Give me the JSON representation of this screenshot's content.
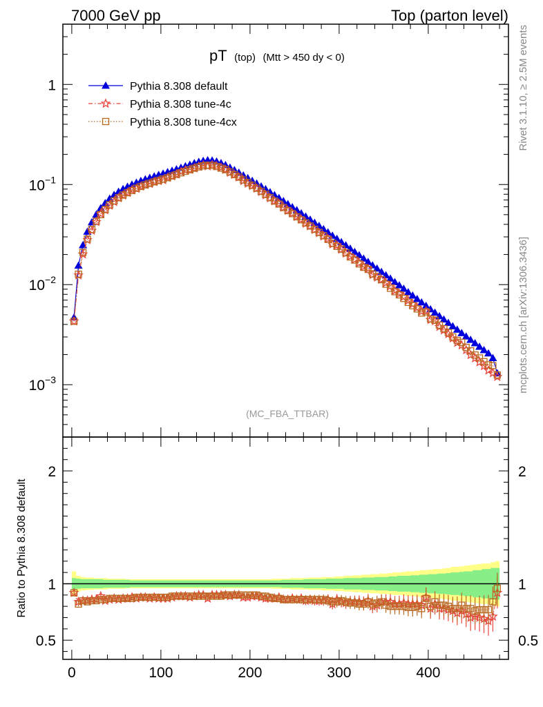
{
  "header": {
    "left": "7000 GeV pp",
    "right": "Top (parton level)"
  },
  "plot_title": {
    "main": "pT",
    "sub1": "(top)",
    "sub2": "(Mtt > 450 dy < 0)"
  },
  "watermark": "(MC_FBA_TTBAR)",
  "side_labels": {
    "rivet": "Rivet 3.1.10, ≥ 2.5M events",
    "mcplots": "mcplots.cern.ch [arXiv:1306.3436]"
  },
  "colors": {
    "default": "#0000dd",
    "tune4c": "#e8453c",
    "tune4cx": "#b8691f",
    "band_yellow": "#ffff88",
    "band_green": "#88ee88"
  },
  "chart_data": [
    {
      "type": "line",
      "panel": "main",
      "yscale": "log",
      "xlim": [
        -10,
        490
      ],
      "ylim": [
        0.0003,
        4
      ],
      "y_ticks": [
        {
          "value": 1,
          "base": "1",
          "exp": ""
        },
        {
          "value": 0.1,
          "base": "10",
          "exp": "−1"
        },
        {
          "value": 0.01,
          "base": "10",
          "exp": "−2"
        },
        {
          "value": 0.001,
          "base": "10",
          "exp": "−3"
        }
      ],
      "legend_position": "top-left",
      "x": [
        2.5,
        7.5,
        12.5,
        17.5,
        22.5,
        27.5,
        32.5,
        37.5,
        42.5,
        47.5,
        52.5,
        57.5,
        62.5,
        67.5,
        72.5,
        77.5,
        82.5,
        87.5,
        92.5,
        97.5,
        102.5,
        107.5,
        112.5,
        117.5,
        122.5,
        127.5,
        132.5,
        137.5,
        142.5,
        147.5,
        152.5,
        157.5,
        162.5,
        167.5,
        172.5,
        177.5,
        182.5,
        187.5,
        192.5,
        197.5,
        202.5,
        207.5,
        212.5,
        217.5,
        222.5,
        227.5,
        232.5,
        237.5,
        242.5,
        247.5,
        252.5,
        257.5,
        262.5,
        267.5,
        272.5,
        277.5,
        282.5,
        287.5,
        292.5,
        297.5,
        302.5,
        307.5,
        312.5,
        317.5,
        322.5,
        327.5,
        332.5,
        337.5,
        342.5,
        347.5,
        352.5,
        357.5,
        362.5,
        367.5,
        372.5,
        377.5,
        382.5,
        387.5,
        392.5,
        397.5,
        402.5,
        407.5,
        412.5,
        417.5,
        422.5,
        427.5,
        432.5,
        437.5,
        442.5,
        447.5,
        452.5,
        457.5,
        462.5,
        467.5,
        472.5,
        477.5
      ],
      "series": [
        {
          "name": "Pythia 8.308 default",
          "style": "line-triangle",
          "values": [
            0.0047,
            0.0155,
            0.0248,
            0.0338,
            0.042,
            0.0502,
            0.0582,
            0.0653,
            0.0723,
            0.0788,
            0.0848,
            0.0902,
            0.0952,
            0.1,
            0.1045,
            0.1088,
            0.1128,
            0.1168,
            0.1208,
            0.1248,
            0.1288,
            0.133,
            0.1375,
            0.1422,
            0.1472,
            0.1525,
            0.158,
            0.1635,
            0.1685,
            0.1725,
            0.175,
            0.174,
            0.17,
            0.164,
            0.1565,
            0.148,
            0.1395,
            0.1315,
            0.1235,
            0.116,
            0.109,
            0.1025,
            0.096,
            0.09,
            0.084,
            0.0785,
            0.0733,
            0.0685,
            0.0638,
            0.0595,
            0.0554,
            0.0516,
            0.048,
            0.0447,
            0.0415,
            0.0386,
            0.0358,
            0.0333,
            0.0309,
            0.0287,
            0.0266,
            0.0247,
            0.0229,
            0.0212,
            0.0197,
            0.0182,
            0.0169,
            0.0156,
            0.0145,
            0.0134,
            0.0124,
            0.0115,
            0.0106,
            0.00985,
            0.0091,
            0.00841,
            0.00778,
            0.00719,
            0.00665,
            0.00615,
            0.00568,
            0.00525,
            0.00485,
            0.00449,
            0.00415,
            0.00384,
            0.00355,
            0.00328,
            0.00304,
            0.00281,
            0.0026,
            0.0024,
            0.00222,
            0.00206,
            0.00185,
            0.0013
          ]
        },
        {
          "name": "Pythia 8.308 tune-4c",
          "style": "dashdot-star",
          "values": [
            0.0043,
            0.0124,
            0.0201,
            0.0279,
            0.0346,
            0.0423,
            0.051,
            0.0555,
            0.0616,
            0.067,
            0.0733,
            0.0779,
            0.0828,
            0.088,
            0.0909,
            0.0957,
            0.0993,
            0.1016,
            0.1063,
            0.1086,
            0.1108,
            0.117,
            0.121,
            0.1265,
            0.1339,
            0.1388,
            0.1406,
            0.1455,
            0.1516,
            0.1557,
            0.1523,
            0.1566,
            0.153,
            0.1476,
            0.1409,
            0.1317,
            0.1255,
            0.1184,
            0.1087,
            0.1021,
            0.097,
            0.0912,
            0.0845,
            0.0783,
            0.0731,
            0.0683,
            0.0645,
            0.0589,
            0.0549,
            0.0517,
            0.0476,
            0.0449,
            0.0408,
            0.0384,
            0.0353,
            0.0328,
            0.0304,
            0.0286,
            0.0253,
            0.0247,
            0.0224,
            0.0205,
            0.0192,
            0.0178,
            0.0165,
            0.0151,
            0.0144,
            0.0125,
            0.0118,
            0.0112,
            0.0104,
            0.00965,
            0.00868,
            0.00808,
            0.00755,
            0.00692,
            0.00638,
            0.00589,
            0.00539,
            0.00542,
            0.00445,
            0.00432,
            0.00379,
            0.0035,
            0.00321,
            0.00291,
            0.00263,
            0.00248,
            0.00222,
            0.00198,
            0.00184,
            0.00168,
            0.00154,
            0.00139,
            0.00131,
            0.0012
          ]
        },
        {
          "name": "Pythia 8.308 tune-4cx",
          "style": "dotted-square",
          "values": [
            0.0043,
            0.0127,
            0.021,
            0.0285,
            0.0356,
            0.0429,
            0.05,
            0.0562,
            0.0626,
            0.0686,
            0.0738,
            0.0785,
            0.0829,
            0.0871,
            0.0917,
            0.0957,
            0.0992,
            0.1028,
            0.1063,
            0.1098,
            0.1134,
            0.1171,
            0.1218,
            0.1259,
            0.131,
            0.1357,
            0.1406,
            0.1455,
            0.1499,
            0.1539,
            0.1558,
            0.1556,
            0.1513,
            0.1459,
            0.1408,
            0.1332,
            0.1256,
            0.1184,
            0.1112,
            0.1044,
            0.0981,
            0.0918,
            0.0854,
            0.0797,
            0.0739,
            0.0683,
            0.0638,
            0.0589,
            0.0549,
            0.0512,
            0.0476,
            0.0444,
            0.0413,
            0.0385,
            0.0357,
            0.0332,
            0.0308,
            0.0283,
            0.0259,
            0.0241,
            0.0226,
            0.0208,
            0.0189,
            0.0176,
            0.0161,
            0.0149,
            0.0142,
            0.0128,
            0.012,
            0.0112,
            0.0101,
            0.0092,
            0.0085,
            0.0079,
            0.00728,
            0.00665,
            0.00615,
            0.00572,
            0.0052,
            0.00535,
            0.00454,
            0.00441,
            0.00394,
            0.00363,
            0.00332,
            0.003,
            0.00277,
            0.00265,
            0.00236,
            0.00218,
            0.00198,
            0.00185,
            0.0017,
            0.00158,
            0.00155,
            0.00125
          ]
        }
      ]
    },
    {
      "type": "line",
      "panel": "ratio",
      "ylabel": "Ratio to Pythia 8.308 default",
      "xlim": [
        -10,
        490
      ],
      "ylim": [
        0.33,
        2.3
      ],
      "x_ticks": [
        0,
        100,
        200,
        300,
        400
      ],
      "y_ticks": [
        0.5,
        1,
        2
      ],
      "band_stat_green": [
        0.05,
        0.045,
        0.04,
        0.04,
        0.04,
        0.04,
        0.04,
        0.035,
        0.035,
        0.035,
        0.035,
        0.035,
        0.035,
        0.03,
        0.03,
        0.03,
        0.03,
        0.03,
        0.03,
        0.03,
        0.03,
        0.03,
        0.03,
        0.03,
        0.03,
        0.03,
        0.03,
        0.03,
        0.03,
        0.03,
        0.03,
        0.03,
        0.03,
        0.03,
        0.03,
        0.03,
        0.03,
        0.03,
        0.03,
        0.03,
        0.03,
        0.03,
        0.03,
        0.03,
        0.03,
        0.03,
        0.03,
        0.035,
        0.035,
        0.035,
        0.035,
        0.035,
        0.04,
        0.04,
        0.04,
        0.04,
        0.04,
        0.045,
        0.045,
        0.045,
        0.045,
        0.05,
        0.05,
        0.05,
        0.05,
        0.055,
        0.055,
        0.055,
        0.06,
        0.06,
        0.06,
        0.065,
        0.065,
        0.07,
        0.07,
        0.07,
        0.075,
        0.075,
        0.08,
        0.08,
        0.085,
        0.085,
        0.09,
        0.09,
        0.095,
        0.1,
        0.1,
        0.105,
        0.11,
        0.11,
        0.12,
        0.12,
        0.13,
        0.13,
        0.14,
        0.14
      ],
      "band_total_yellow": [
        0.11,
        0.07,
        0.06,
        0.055,
        0.055,
        0.05,
        0.05,
        0.05,
        0.045,
        0.045,
        0.045,
        0.045,
        0.04,
        0.04,
        0.04,
        0.04,
        0.04,
        0.04,
        0.04,
        0.04,
        0.04,
        0.04,
        0.04,
        0.04,
        0.04,
        0.04,
        0.04,
        0.04,
        0.04,
        0.04,
        0.04,
        0.04,
        0.04,
        0.04,
        0.04,
        0.04,
        0.04,
        0.04,
        0.04,
        0.04,
        0.04,
        0.04,
        0.04,
        0.04,
        0.04,
        0.045,
        0.045,
        0.045,
        0.045,
        0.05,
        0.05,
        0.05,
        0.05,
        0.055,
        0.055,
        0.055,
        0.06,
        0.06,
        0.06,
        0.065,
        0.065,
        0.07,
        0.07,
        0.075,
        0.075,
        0.08,
        0.08,
        0.085,
        0.085,
        0.09,
        0.09,
        0.095,
        0.1,
        0.1,
        0.105,
        0.11,
        0.11,
        0.115,
        0.12,
        0.12,
        0.125,
        0.13,
        0.13,
        0.135,
        0.14,
        0.15,
        0.15,
        0.155,
        0.16,
        0.165,
        0.17,
        0.175,
        0.18,
        0.18,
        0.19,
        0.2
      ],
      "series": [
        {
          "name": "Pythia 8.308 tune-4c",
          "style": "dashdot-star",
          "values": [
            0.92,
            0.84,
            0.85,
            0.85,
            0.86,
            0.86,
            0.89,
            0.85,
            0.86,
            0.87,
            0.86,
            0.87,
            0.87,
            0.88,
            0.87,
            0.88,
            0.88,
            0.87,
            0.88,
            0.87,
            0.87,
            0.87,
            0.88,
            0.89,
            0.89,
            0.89,
            0.88,
            0.89,
            0.9,
            0.9,
            0.87,
            0.9,
            0.9,
            0.9,
            0.9,
            0.89,
            0.9,
            0.9,
            0.88,
            0.88,
            0.89,
            0.89,
            0.88,
            0.87,
            0.87,
            0.87,
            0.88,
            0.86,
            0.86,
            0.87,
            0.86,
            0.87,
            0.85,
            0.86,
            0.85,
            0.85,
            0.85,
            0.86,
            0.82,
            0.86,
            0.84,
            0.83,
            0.84,
            0.84,
            0.84,
            0.83,
            0.85,
            0.8,
            0.81,
            0.84,
            0.84,
            0.84,
            0.82,
            0.82,
            0.83,
            0.82,
            0.82,
            0.82,
            0.81,
            0.88,
            0.78,
            0.82,
            0.78,
            0.78,
            0.77,
            0.76,
            0.74,
            0.76,
            0.73,
            0.7,
            0.71,
            0.7,
            0.69,
            0.67,
            0.71,
            0.92
          ]
        },
        {
          "name": "Pythia 8.308 tune-4cx",
          "style": "dotted-square",
          "values": [
            0.92,
            0.82,
            0.85,
            0.84,
            0.85,
            0.85,
            0.86,
            0.86,
            0.87,
            0.87,
            0.87,
            0.87,
            0.87,
            0.87,
            0.88,
            0.88,
            0.88,
            0.88,
            0.88,
            0.88,
            0.88,
            0.88,
            0.89,
            0.89,
            0.89,
            0.89,
            0.89,
            0.89,
            0.89,
            0.89,
            0.89,
            0.89,
            0.89,
            0.89,
            0.9,
            0.9,
            0.9,
            0.9,
            0.9,
            0.9,
            0.9,
            0.9,
            0.89,
            0.89,
            0.88,
            0.87,
            0.87,
            0.86,
            0.86,
            0.86,
            0.86,
            0.86,
            0.86,
            0.86,
            0.86,
            0.86,
            0.86,
            0.85,
            0.84,
            0.84,
            0.85,
            0.84,
            0.83,
            0.83,
            0.82,
            0.82,
            0.84,
            0.82,
            0.83,
            0.84,
            0.81,
            0.8,
            0.8,
            0.8,
            0.8,
            0.79,
            0.79,
            0.8,
            0.78,
            0.87,
            0.8,
            0.84,
            0.81,
            0.81,
            0.8,
            0.78,
            0.78,
            0.81,
            0.78,
            0.78,
            0.76,
            0.77,
            0.77,
            0.77,
            0.84,
            0.96
          ]
        }
      ]
    }
  ]
}
